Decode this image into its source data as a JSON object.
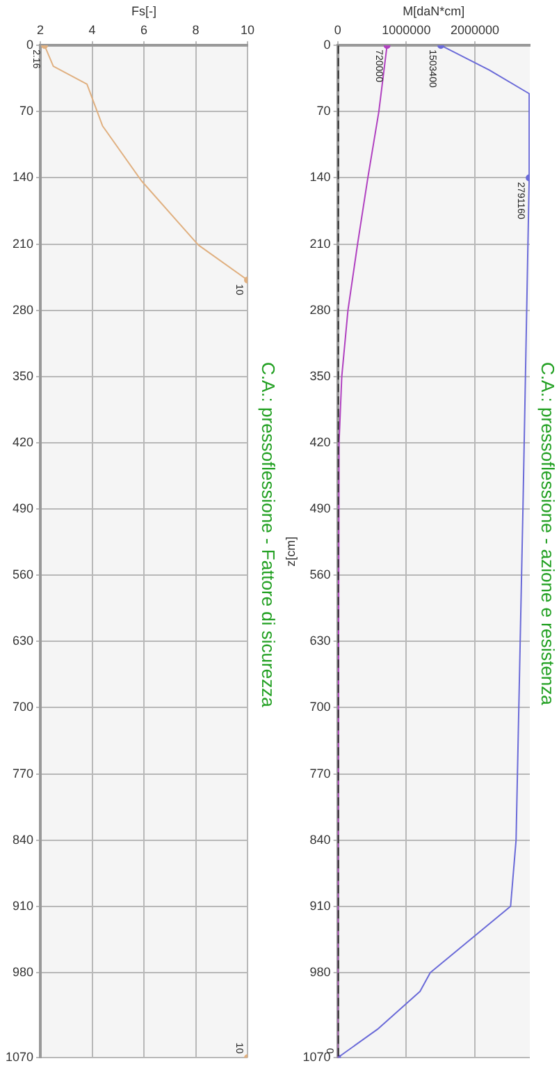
{
  "chart_data": [
    {
      "type": "line",
      "title": "C.A.: pressoflessione - Fattore di sicurezza",
      "xlabel": "Fs[-]",
      "orientation": "horizontal",
      "xlim": [
        2,
        10
      ],
      "xticks": [
        2,
        4,
        6,
        8,
        10
      ],
      "ylim": [
        1070,
        0
      ],
      "yticks": [
        0,
        70,
        140,
        210,
        280,
        350,
        420,
        490,
        560,
        630,
        700,
        770,
        840,
        910,
        980,
        1070
      ],
      "grid": true,
      "series": [
        {
          "color": "#e0b080",
          "x": [
            0,
            22,
            41,
            85,
            143,
            211,
            248,
            600,
            1070
          ],
          "values": [
            2.16,
            2.5,
            3.8,
            4.4,
            5.9,
            8.1,
            10,
            null,
            10
          ],
          "value_labels": [
            "2.16",
            null,
            null,
            null,
            null,
            null,
            "10",
            null,
            "10"
          ]
        }
      ]
    },
    {
      "type": "line",
      "title": "C.A.: pressoflessione - azione e resistenza",
      "xlabel": "M[daN*cm]",
      "ylabel": "z[cm]",
      "orientation": "horizontal",
      "xlim": [
        0,
        2800000
      ],
      "xticks": [
        0,
        1000000,
        2000000
      ],
      "ylim": [
        1070,
        0
      ],
      "yticks": [
        0,
        70,
        140,
        210,
        280,
        350,
        420,
        490,
        560,
        630,
        700,
        770,
        840,
        910,
        980,
        1070
      ],
      "grid": true,
      "series": [
        {
          "color": "#333333",
          "line_style": "dashed",
          "x": [
            0,
            1070
          ],
          "values": [
            0,
            0
          ]
        },
        {
          "color": "#b040c0",
          "x": [
            0,
            70,
            140,
            210,
            280,
            350,
            420,
            1070
          ],
          "values": [
            720000,
            600000,
            440000,
            290000,
            150000,
            60000,
            20000,
            0
          ],
          "value_labels": [
            "720000",
            null,
            null,
            null,
            null,
            null,
            null,
            null
          ]
        },
        {
          "color": "#6a6ad8",
          "x": [
            0,
            26,
            51,
            140,
            490,
            840,
            910,
            980,
            1000,
            1040,
            1070
          ],
          "values": [
            1503400,
            2210000,
            2791160,
            2791160,
            2700000,
            2600000,
            2520000,
            1350000,
            1200000,
            580000,
            0
          ],
          "value_labels": [
            "1503400",
            null,
            null,
            "2791160",
            null,
            null,
            null,
            null,
            null,
            null,
            "0"
          ]
        }
      ]
    }
  ]
}
